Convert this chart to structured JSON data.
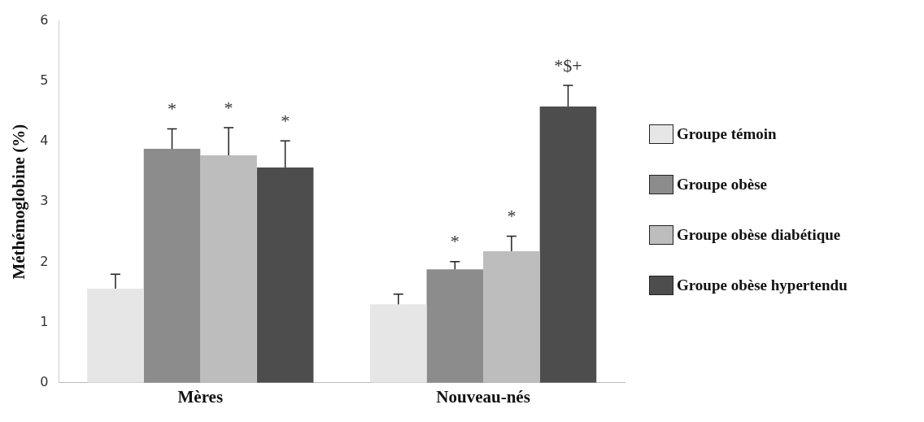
{
  "chart_data": {
    "type": "bar",
    "ylabel": "Méthémoglobine (%)",
    "categories": [
      "Mères",
      "Nouveau-nés"
    ],
    "series": [
      {
        "name": "Groupe témoin",
        "color": "#e6e6e6",
        "values": [
          1.56,
          1.3
        ],
        "errors": [
          [
            1.56,
            1.8
          ],
          [
            1.3,
            1.47
          ]
        ]
      },
      {
        "name": "Groupe obèse",
        "color": "#8c8c8c",
        "values": [
          3.88,
          1.88
        ],
        "errors": [
          [
            3.88,
            4.21
          ],
          [
            1.88,
            2.01
          ]
        ],
        "value_labels": [
          "*",
          "*"
        ]
      },
      {
        "name": "Groupe obèse diabétique",
        "color": "#bdbdbd",
        "values": [
          3.77,
          2.18
        ],
        "errors": [
          [
            3.77,
            4.23
          ],
          [
            2.18,
            2.43
          ]
        ],
        "value_labels": [
          "*",
          "*"
        ]
      },
      {
        "name": "Groupe obèse hypertendu",
        "color": "#4d4d4d",
        "values": [
          3.57,
          4.58
        ],
        "errors": [
          [
            3.57,
            4.01
          ],
          [
            4.58,
            4.93
          ]
        ],
        "value_labels": [
          "*",
          "*$+"
        ]
      }
    ],
    "ylim": [
      0,
      6
    ],
    "yticks": [
      0,
      1,
      2,
      3,
      4,
      5,
      6
    ],
    "grid": false,
    "legend": "right"
  }
}
